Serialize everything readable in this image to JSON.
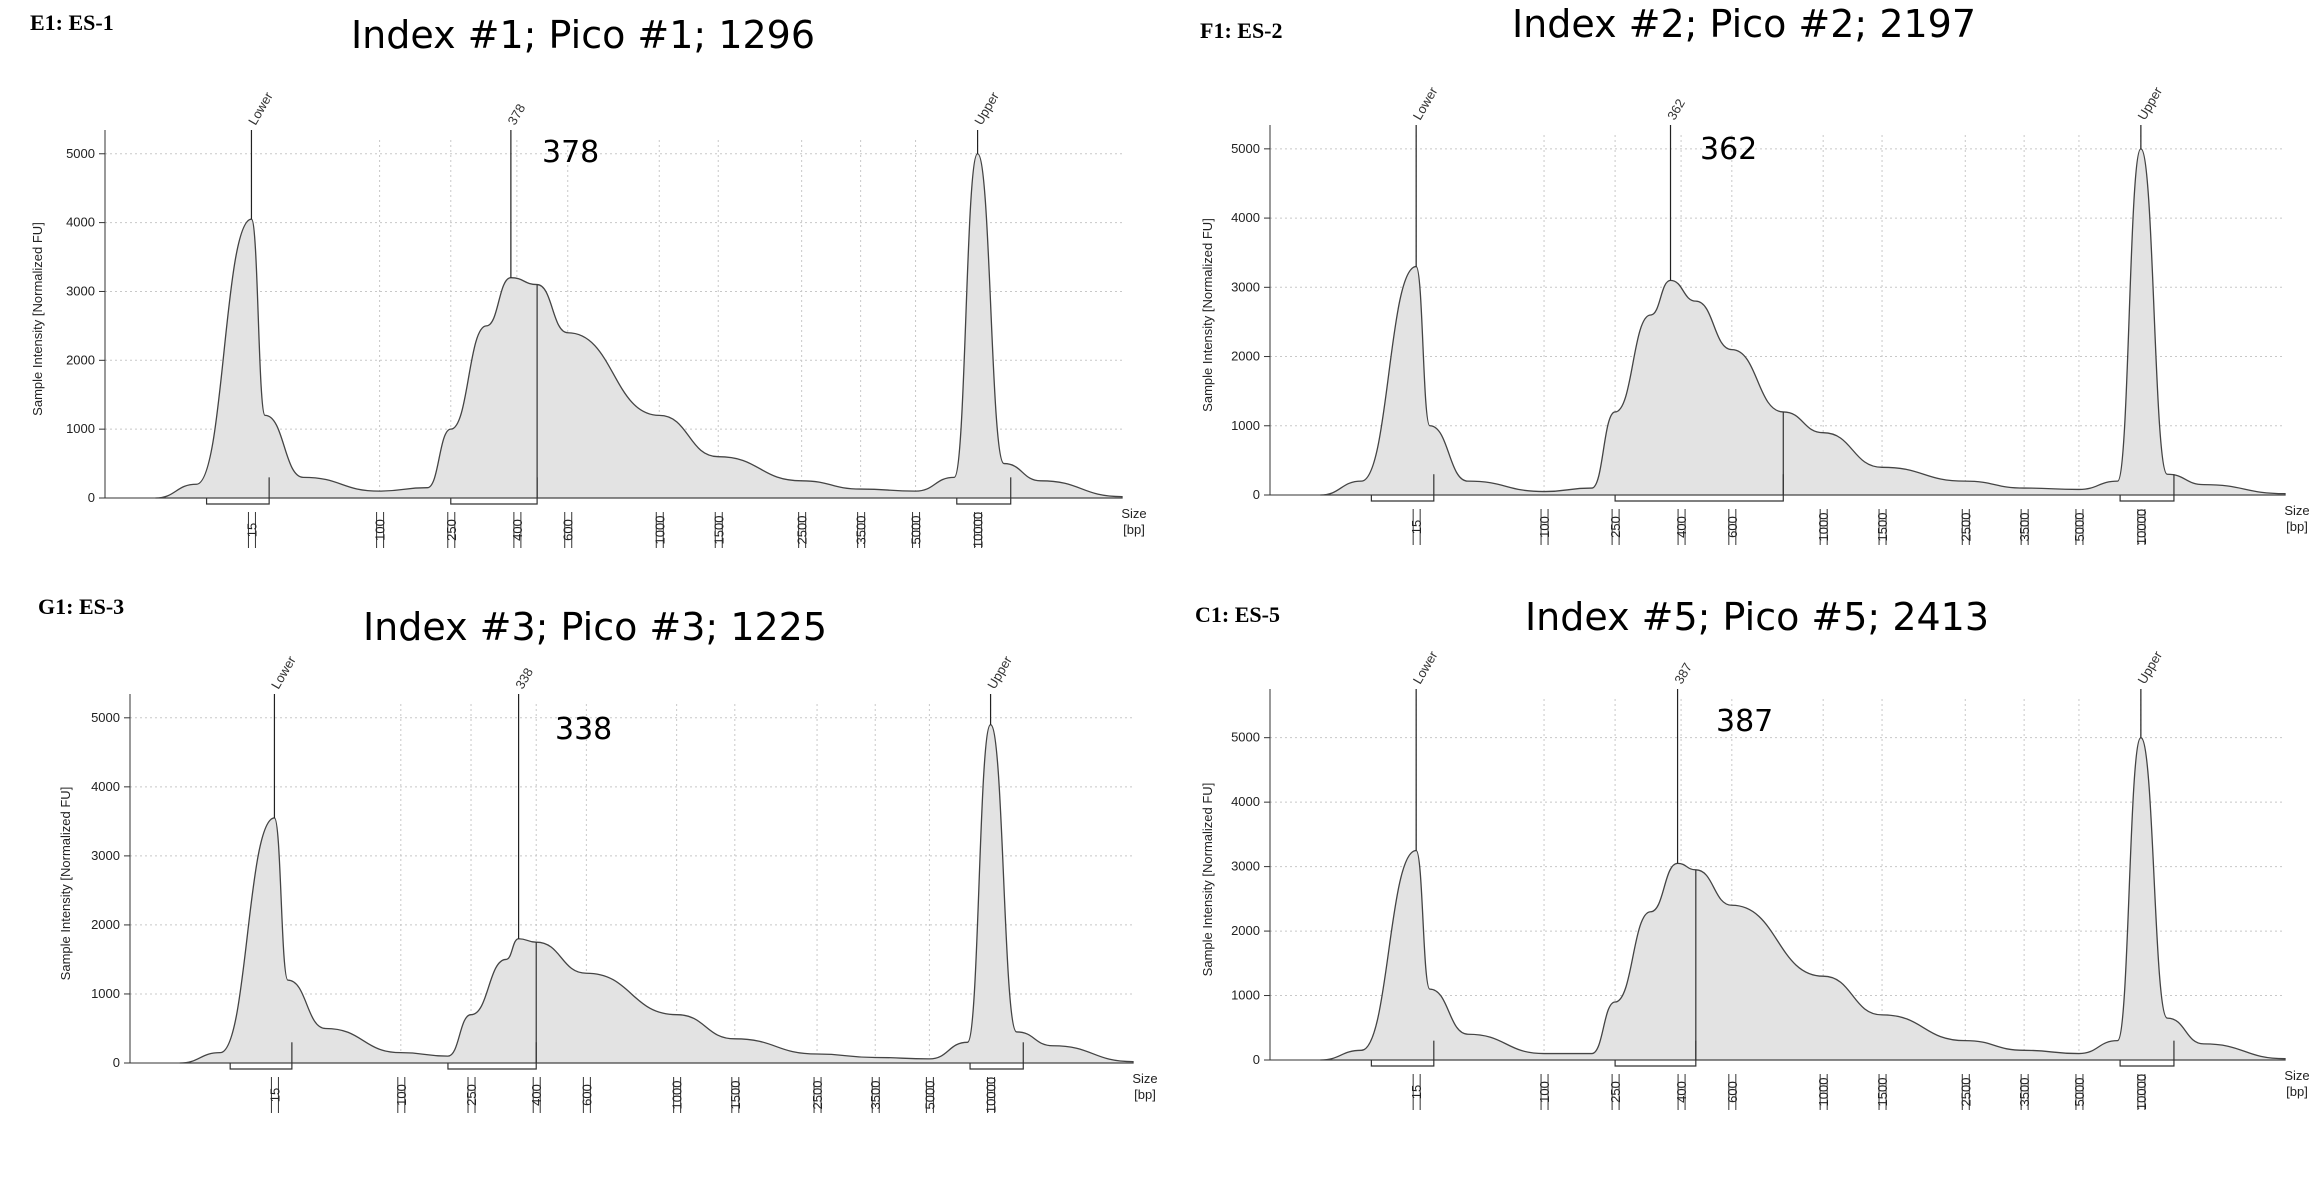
{
  "chart_data": [
    {
      "type": "area",
      "sample_id": "E1: ES-1",
      "title": "Index #1; Pico #1; 1296",
      "ylabel": "Sample Intensity [Normalized FU]",
      "xlabel": "Size [bp]",
      "xlabel_lines": [
        "Size",
        "[bp]"
      ],
      "x_scale": "log (non-linear sizing ladder)",
      "x_ticks": [
        "15",
        "100",
        "250",
        "400",
        "600",
        "1000",
        "1500",
        "2500",
        "3500",
        "5000",
        "10000"
      ],
      "y_ticks": [
        "0",
        "1000",
        "2000",
        "3000",
        "4000",
        "5000"
      ],
      "ylim": [
        0,
        5200
      ],
      "grid": true,
      "markers": [
        {
          "label": "Lower",
          "size_bp": 15,
          "height": 4050
        },
        {
          "label": "378",
          "size_bp": 378,
          "height": 3200
        },
        {
          "label": "Upper",
          "size_bp": 10000,
          "height": 5000
        }
      ],
      "peak_annotation": "378",
      "region_bp": [
        250,
        470
      ],
      "trace": [
        {
          "size_bp": 10,
          "fu": 0
        },
        {
          "size_bp": 12,
          "fu": 200
        },
        {
          "size_bp": 15,
          "fu": 4050
        },
        {
          "size_bp": 18,
          "fu": 1200
        },
        {
          "size_bp": 30,
          "fu": 300
        },
        {
          "size_bp": 100,
          "fu": 100
        },
        {
          "size_bp": 200,
          "fu": 150
        },
        {
          "size_bp": 250,
          "fu": 1000
        },
        {
          "size_bp": 300,
          "fu": 2500
        },
        {
          "size_bp": 378,
          "fu": 3200
        },
        {
          "size_bp": 470,
          "fu": 3100
        },
        {
          "size_bp": 600,
          "fu": 2400
        },
        {
          "size_bp": 1000,
          "fu": 1200
        },
        {
          "size_bp": 1500,
          "fu": 600
        },
        {
          "size_bp": 2500,
          "fu": 250
        },
        {
          "size_bp": 3500,
          "fu": 130
        },
        {
          "size_bp": 5000,
          "fu": 100
        },
        {
          "size_bp": 8000,
          "fu": 300
        },
        {
          "size_bp": 10000,
          "fu": 5000
        },
        {
          "size_bp": 12000,
          "fu": 500
        },
        {
          "size_bp": 15000,
          "fu": 250
        },
        {
          "size_bp": 20000,
          "fu": 20
        }
      ]
    },
    {
      "type": "area",
      "sample_id": "F1: ES-2",
      "title": "Index #2; Pico #2; 2197",
      "ylabel": "Sample Intensity [Normalized FU]",
      "xlabel": "Size [bp]",
      "xlabel_lines": [
        "Size",
        "[bp]"
      ],
      "x_scale": "log (non-linear sizing ladder)",
      "x_ticks": [
        "15",
        "100",
        "250",
        "400",
        "600",
        "1000",
        "1500",
        "2500",
        "3500",
        "5000",
        "10000"
      ],
      "y_ticks": [
        "0",
        "1000",
        "2000",
        "3000",
        "4000",
        "5000"
      ],
      "ylim": [
        0,
        5200
      ],
      "grid": true,
      "markers": [
        {
          "label": "Lower",
          "size_bp": 15,
          "height": 3300
        },
        {
          "label": "362",
          "size_bp": 362,
          "height": 3100
        },
        {
          "label": "Upper",
          "size_bp": 10000,
          "height": 5000
        }
      ],
      "peak_annotation": "362",
      "region_bp": [
        250,
        800
      ],
      "trace": [
        {
          "size_bp": 10,
          "fu": 0
        },
        {
          "size_bp": 12,
          "fu": 200
        },
        {
          "size_bp": 15,
          "fu": 3300
        },
        {
          "size_bp": 18,
          "fu": 1000
        },
        {
          "size_bp": 30,
          "fu": 200
        },
        {
          "size_bp": 100,
          "fu": 50
        },
        {
          "size_bp": 200,
          "fu": 100
        },
        {
          "size_bp": 250,
          "fu": 1200
        },
        {
          "size_bp": 300,
          "fu": 2600
        },
        {
          "size_bp": 362,
          "fu": 3100
        },
        {
          "size_bp": 450,
          "fu": 2800
        },
        {
          "size_bp": 600,
          "fu": 2100
        },
        {
          "size_bp": 800,
          "fu": 1200
        },
        {
          "size_bp": 1000,
          "fu": 900
        },
        {
          "size_bp": 1500,
          "fu": 400
        },
        {
          "size_bp": 2500,
          "fu": 200
        },
        {
          "size_bp": 3500,
          "fu": 100
        },
        {
          "size_bp": 5000,
          "fu": 80
        },
        {
          "size_bp": 8000,
          "fu": 200
        },
        {
          "size_bp": 10000,
          "fu": 5000
        },
        {
          "size_bp": 12000,
          "fu": 300
        },
        {
          "size_bp": 15000,
          "fu": 150
        },
        {
          "size_bp": 20000,
          "fu": 20
        }
      ]
    },
    {
      "type": "area",
      "sample_id": "G1: ES-3",
      "title": "Index #3; Pico #3; 1225",
      "ylabel": "Sample Intensity [Normalized FU]",
      "xlabel": "Size [bp]",
      "xlabel_lines": [
        "Size",
        "[bp]"
      ],
      "x_scale": "log (non-linear sizing ladder)",
      "x_ticks": [
        "15",
        "100",
        "250",
        "400",
        "600",
        "1000",
        "1500",
        "2500",
        "3500",
        "5000",
        "10000"
      ],
      "y_ticks": [
        "0",
        "1000",
        "2000",
        "3000",
        "4000",
        "5000"
      ],
      "ylim": [
        0,
        5200
      ],
      "grid": true,
      "markers": [
        {
          "label": "Lower",
          "size_bp": 15,
          "height": 3550
        },
        {
          "label": "338",
          "size_bp": 338,
          "height": 1800
        },
        {
          "label": "Upper",
          "size_bp": 10000,
          "height": 4900
        }
      ],
      "peak_annotation": "338",
      "region_bp": [
        200,
        400
      ],
      "trace": [
        {
          "size_bp": 10,
          "fu": 0
        },
        {
          "size_bp": 12,
          "fu": 150
        },
        {
          "size_bp": 15,
          "fu": 3550
        },
        {
          "size_bp": 18,
          "fu": 1200
        },
        {
          "size_bp": 30,
          "fu": 500
        },
        {
          "size_bp": 100,
          "fu": 150
        },
        {
          "size_bp": 200,
          "fu": 100
        },
        {
          "size_bp": 250,
          "fu": 700
        },
        {
          "size_bp": 300,
          "fu": 1500
        },
        {
          "size_bp": 338,
          "fu": 1800
        },
        {
          "size_bp": 400,
          "fu": 1750
        },
        {
          "size_bp": 600,
          "fu": 1300
        },
        {
          "size_bp": 1000,
          "fu": 700
        },
        {
          "size_bp": 1500,
          "fu": 350
        },
        {
          "size_bp": 2500,
          "fu": 130
        },
        {
          "size_bp": 3500,
          "fu": 80
        },
        {
          "size_bp": 5000,
          "fu": 60
        },
        {
          "size_bp": 8000,
          "fu": 300
        },
        {
          "size_bp": 10000,
          "fu": 4900
        },
        {
          "size_bp": 12000,
          "fu": 450
        },
        {
          "size_bp": 15000,
          "fu": 250
        },
        {
          "size_bp": 20000,
          "fu": 20
        }
      ]
    },
    {
      "type": "area",
      "sample_id": "C1: ES-5",
      "title": "Index #5; Pico #5; 2413",
      "ylabel": "Sample Intensity [Normalized FU]",
      "xlabel": "Size [bp]",
      "xlabel_lines": [
        "Size",
        "[bp]"
      ],
      "x_scale": "log (non-linear sizing ladder)",
      "x_ticks": [
        "15",
        "100",
        "250",
        "400",
        "600",
        "1000",
        "1500",
        "2500",
        "3500",
        "5000",
        "10000"
      ],
      "y_ticks": [
        "0",
        "1000",
        "2000",
        "3000",
        "4000",
        "5000"
      ],
      "ylim": [
        0,
        5600
      ],
      "grid": true,
      "markers": [
        {
          "label": "Lower",
          "size_bp": 15,
          "height": 3250
        },
        {
          "label": "387",
          "size_bp": 387,
          "height": 3050
        },
        {
          "label": "Upper",
          "size_bp": 10000,
          "height": 5000
        }
      ],
      "peak_annotation": "387",
      "region_bp": [
        250,
        450
      ],
      "trace": [
        {
          "size_bp": 10,
          "fu": 0
        },
        {
          "size_bp": 12,
          "fu": 150
        },
        {
          "size_bp": 15,
          "fu": 3250
        },
        {
          "size_bp": 18,
          "fu": 1100
        },
        {
          "size_bp": 30,
          "fu": 400
        },
        {
          "size_bp": 100,
          "fu": 100
        },
        {
          "size_bp": 200,
          "fu": 100
        },
        {
          "size_bp": 250,
          "fu": 900
        },
        {
          "size_bp": 300,
          "fu": 2300
        },
        {
          "size_bp": 387,
          "fu": 3050
        },
        {
          "size_bp": 450,
          "fu": 2950
        },
        {
          "size_bp": 600,
          "fu": 2400
        },
        {
          "size_bp": 1000,
          "fu": 1300
        },
        {
          "size_bp": 1500,
          "fu": 700
        },
        {
          "size_bp": 2500,
          "fu": 300
        },
        {
          "size_bp": 3500,
          "fu": 150
        },
        {
          "size_bp": 5000,
          "fu": 100
        },
        {
          "size_bp": 8000,
          "fu": 300
        },
        {
          "size_bp": 10000,
          "fu": 5000
        },
        {
          "size_bp": 12000,
          "fu": 650
        },
        {
          "size_bp": 15000,
          "fu": 250
        },
        {
          "size_bp": 20000,
          "fu": 20
        }
      ]
    }
  ]
}
